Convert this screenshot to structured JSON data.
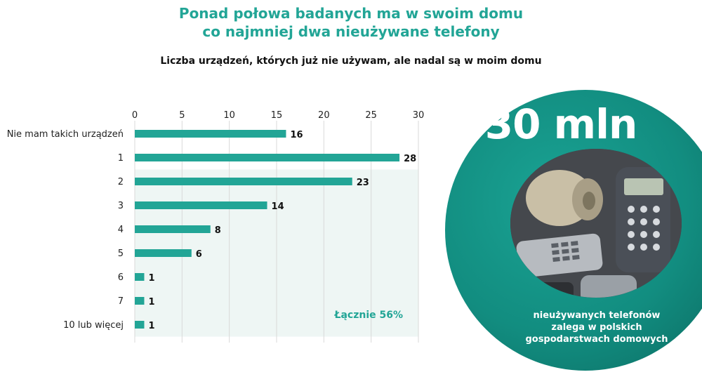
{
  "header": {
    "title_line1": "Ponad połowa badanych ma w swoim domu",
    "title_line2": "co najmniej dwa nieużywane telefony"
  },
  "chart_data": {
    "type": "bar",
    "orientation": "horizontal",
    "subtitle": "Liczba urządzeń, których już nie używam, ale nadal są w moim domu",
    "categories": [
      "Nie mam takich urządzeń",
      "1",
      "2",
      "3",
      "4",
      "5",
      "6",
      "7",
      "10 lub więcej"
    ],
    "values": [
      16,
      28,
      23,
      14,
      8,
      6,
      1,
      1,
      1
    ],
    "xlim": [
      0,
      30
    ],
    "xticks": [
      0,
      5,
      10,
      15,
      20,
      25,
      30
    ],
    "grid": true,
    "highlight": {
      "from_category": "2",
      "to_category": "10 lub więcej",
      "label": "Łącznie 56%"
    },
    "colors": {
      "bar": "#22a596",
      "highlight_bg": "#eef6f4",
      "grid": "#d9d9d9"
    }
  },
  "badge": {
    "value": "30 mln",
    "caption_line1": "nieużywanych telefonów",
    "caption_line2": "zalega w polskich",
    "caption_line3": "gospodarstwach domowych",
    "color": "#169a8c"
  }
}
